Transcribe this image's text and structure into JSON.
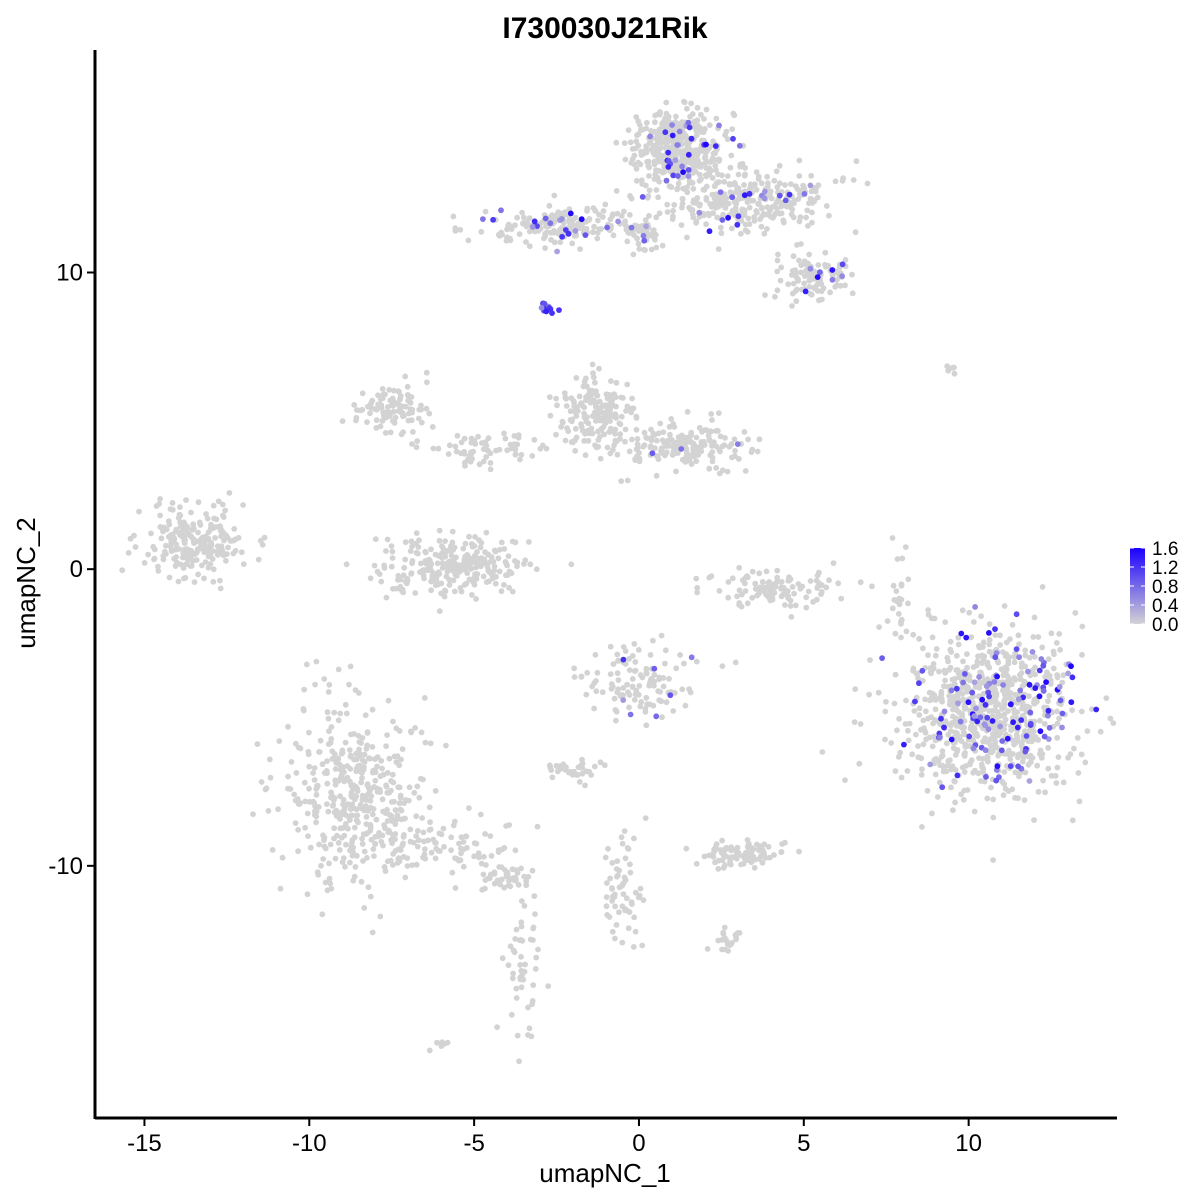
{
  "chart_data": {
    "type": "scatter",
    "title": "I730030J21Rik",
    "xlabel": "umapNC_1",
    "ylabel": "umapNC_2",
    "xlim": [
      -16.5,
      14.5
    ],
    "ylim": [
      -18.5,
      17.5
    ],
    "x_ticks": [
      -15,
      -10,
      -5,
      0,
      5,
      10
    ],
    "x_tick_labels": [
      "-15",
      "-10",
      "-5",
      "0",
      "5",
      "10"
    ],
    "y_ticks": [
      -10,
      0,
      10
    ],
    "y_tick_labels": [
      "-10",
      "0",
      "10"
    ],
    "grid": false,
    "legend_position": "right",
    "colors": {
      "low": "#d3d3d3",
      "high": "#1a00ff"
    },
    "legend": {
      "type": "colorbar",
      "range": [
        0,
        1.6
      ],
      "breaks": [
        0.0,
        0.4,
        0.8,
        1.2,
        1.6
      ],
      "labels": [
        "0.0",
        "0.4",
        "0.8",
        "1.2",
        "1.6"
      ]
    },
    "clusters": [
      {
        "x": 0.0,
        "y": -3.8,
        "sx": 0.9,
        "sy": 0.7,
        "n": 120,
        "expressed_fraction": 0.02
      },
      {
        "x": -8.6,
        "y": -7.6,
        "sx": 1.1,
        "sy": 1.6,
        "n": 420,
        "expressed_fraction": 0.0
      },
      {
        "x": -6.0,
        "y": -9.2,
        "sx": 1.3,
        "sy": 0.5,
        "n": 90,
        "expressed_fraction": 0.0
      },
      {
        "x": -4.1,
        "y": -10.4,
        "sx": 0.4,
        "sy": 0.3,
        "n": 40,
        "expressed_fraction": 0.0
      },
      {
        "x": -3.6,
        "y": -13.5,
        "sx": 0.3,
        "sy": 1.5,
        "n": 50,
        "expressed_fraction": 0.0
      },
      {
        "x": -13.5,
        "y": 0.9,
        "sx": 0.8,
        "sy": 0.6,
        "n": 230,
        "expressed_fraction": 0.0
      },
      {
        "x": -5.5,
        "y": 0.1,
        "sx": 1.1,
        "sy": 0.5,
        "n": 260,
        "expressed_fraction": 0.004
      },
      {
        "x": -7.6,
        "y": 5.4,
        "sx": 0.6,
        "sy": 0.4,
        "n": 100,
        "expressed_fraction": 0.0
      },
      {
        "x": -4.5,
        "y": 4.0,
        "sx": 1.0,
        "sy": 0.3,
        "n": 70,
        "expressed_fraction": 0.0
      },
      {
        "x": -1.3,
        "y": 5.2,
        "sx": 0.6,
        "sy": 0.6,
        "n": 180,
        "expressed_fraction": 0.0
      },
      {
        "x": 1.3,
        "y": 4.2,
        "sx": 0.9,
        "sy": 0.4,
        "n": 180,
        "expressed_fraction": 0.01
      },
      {
        "x": 4.0,
        "y": -0.6,
        "sx": 1.0,
        "sy": 0.3,
        "n": 110,
        "expressed_fraction": 0.0
      },
      {
        "x": 10.6,
        "y": -4.8,
        "sx": 1.3,
        "sy": 1.4,
        "n": 900,
        "expressed_fraction": 0.12
      },
      {
        "x": 1.2,
        "y": 14.2,
        "sx": 0.7,
        "sy": 0.6,
        "n": 400,
        "expressed_fraction": 0.07
      },
      {
        "x": 3.3,
        "y": 12.4,
        "sx": 1.4,
        "sy": 0.5,
        "n": 300,
        "expressed_fraction": 0.06
      },
      {
        "x": -2.4,
        "y": 11.6,
        "sx": 1.2,
        "sy": 0.3,
        "n": 180,
        "expressed_fraction": 0.09
      },
      {
        "x": 5.4,
        "y": 9.8,
        "sx": 0.6,
        "sy": 0.4,
        "n": 110,
        "expressed_fraction": 0.04
      },
      {
        "x": 0.1,
        "y": 11.3,
        "sx": 0.3,
        "sy": 0.3,
        "n": 40,
        "expressed_fraction": 0.1
      },
      {
        "x": -2.7,
        "y": 8.8,
        "sx": 0.15,
        "sy": 0.1,
        "n": 14,
        "expressed_fraction": 1.0
      },
      {
        "x": 3.1,
        "y": -9.6,
        "sx": 0.7,
        "sy": 0.2,
        "n": 90,
        "expressed_fraction": 0.0
      },
      {
        "x": -1.9,
        "y": -6.8,
        "sx": 0.4,
        "sy": 0.2,
        "n": 35,
        "expressed_fraction": 0.0
      },
      {
        "x": -0.5,
        "y": -11.0,
        "sx": 0.3,
        "sy": 1.0,
        "n": 60,
        "expressed_fraction": 0.0
      },
      {
        "x": 2.6,
        "y": -12.5,
        "sx": 0.3,
        "sy": 0.2,
        "n": 20,
        "expressed_fraction": 0.0
      },
      {
        "x": 8.0,
        "y": -0.5,
        "sx": 0.2,
        "sy": 1.2,
        "n": 25,
        "expressed_fraction": 0.0
      },
      {
        "x": -6.0,
        "y": -16.1,
        "sx": 0.1,
        "sy": 0.1,
        "n": 6,
        "expressed_fraction": 0.0
      },
      {
        "x": 9.5,
        "y": 6.7,
        "sx": 0.15,
        "sy": 0.1,
        "n": 5,
        "expressed_fraction": 0.0
      }
    ]
  }
}
